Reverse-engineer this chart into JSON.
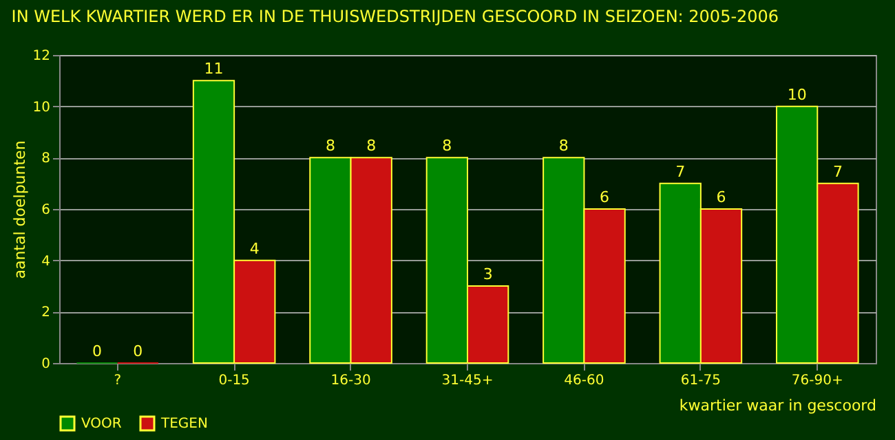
{
  "chart_data": {
    "type": "bar",
    "title": "IN WELK KWARTIER WERD ER IN DE THUISWEDSTRIJDEN GESCOORD IN SEIZOEN: 2005-2006",
    "xlabel": "kwartier waar in gescoord",
    "ylabel": "aantal doelpunten",
    "categories": [
      "?",
      "0-15",
      "16-30",
      "31-45+",
      "46-60",
      "61-75",
      "76-90+"
    ],
    "series": [
      {
        "name": "VOOR",
        "color": "#008800",
        "values": [
          0,
          11,
          8,
          8,
          8,
          7,
          10
        ]
      },
      {
        "name": "TEGEN",
        "color": "#cc1111",
        "values": [
          0,
          4,
          8,
          3,
          6,
          6,
          7
        ]
      }
    ],
    "ylim": [
      0,
      12
    ],
    "yticks": [
      0,
      2,
      4,
      6,
      8,
      10,
      12
    ],
    "grid": "y",
    "legend": "bottom",
    "data_labels": true
  }
}
